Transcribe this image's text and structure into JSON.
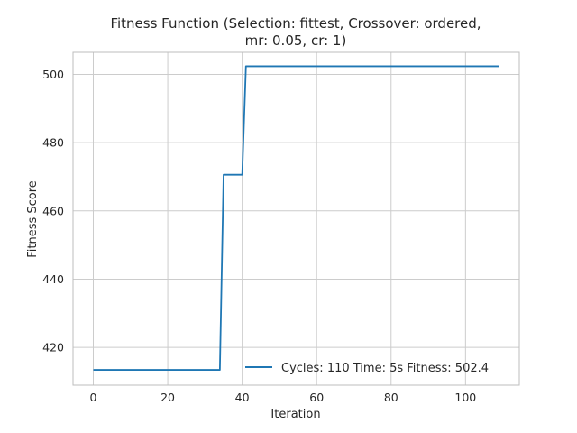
{
  "chart_data": {
    "type": "line",
    "title_lines": [
      "Fitness Function (Selection: fittest, Crossover: ordered,",
      "mr: 0.05, cr: 1)"
    ],
    "xlabel": "Iteration",
    "ylabel": "Fitness Score",
    "xlim": [
      -5.45,
      114.45
    ],
    "ylim": [
      408.92,
      506.48
    ],
    "x_ticks": [
      0,
      20,
      40,
      60,
      80,
      100
    ],
    "y_ticks": [
      420,
      440,
      460,
      480,
      500
    ],
    "grid": true,
    "legend_position": "lower-right",
    "series": [
      {
        "name": "Cycles: 110 Time: 5s Fitness: 502.4",
        "color": "#1f77b4",
        "points": [
          [
            0,
            413.4
          ],
          [
            34,
            413.4
          ],
          [
            35,
            470.6
          ],
          [
            40,
            470.6
          ],
          [
            41,
            502.4
          ],
          [
            109,
            502.4
          ]
        ]
      }
    ]
  }
}
